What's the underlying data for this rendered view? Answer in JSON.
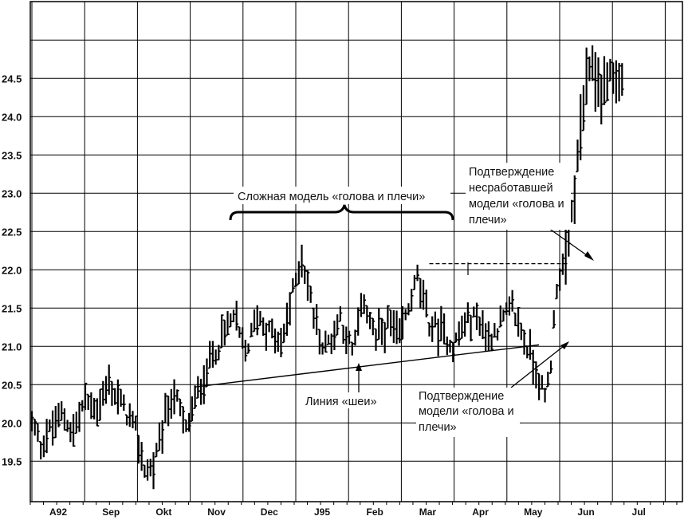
{
  "chart_data": {
    "type": "bar",
    "subtype": "ohlc-price-bars",
    "title": "",
    "xlabel": "",
    "ylabel": "",
    "ylim": [
      19.05,
      25.5
    ],
    "yticks": [
      "19.5",
      "20.0",
      "20.5",
      "21.0",
      "21.5",
      "22.0",
      "22.5",
      "23.0",
      "23.5",
      "24.0",
      "24.5"
    ],
    "ytick_values": [
      19.5,
      20.0,
      20.5,
      21.0,
      21.5,
      22.0,
      22.5,
      23.0,
      23.5,
      24.0,
      24.5
    ],
    "months": [
      "A92",
      "Sep",
      "Okt",
      "Nov",
      "Dec",
      "J95",
      "Feb",
      "Mar",
      "Apr",
      "May",
      "Jun",
      "Jul"
    ],
    "grid": true,
    "anchors": [
      {
        "t": 0,
        "v": 20.0
      },
      {
        "t": 3,
        "v": 19.7
      },
      {
        "t": 6,
        "v": 19.9
      },
      {
        "t": 10,
        "v": 20.1
      },
      {
        "t": 14,
        "v": 19.9
      },
      {
        "t": 18,
        "v": 20.3
      },
      {
        "t": 22,
        "v": 20.2
      },
      {
        "t": 26,
        "v": 20.5
      },
      {
        "t": 31,
        "v": 20.2
      },
      {
        "t": 35,
        "v": 19.9
      },
      {
        "t": 38,
        "v": 19.4
      },
      {
        "t": 41,
        "v": 19.4
      },
      {
        "t": 45,
        "v": 20.1
      },
      {
        "t": 48,
        "v": 20.4
      },
      {
        "t": 52,
        "v": 19.9
      },
      {
        "t": 56,
        "v": 20.4
      },
      {
        "t": 60,
        "v": 20.8
      },
      {
        "t": 64,
        "v": 21.1
      },
      {
        "t": 68,
        "v": 21.4
      },
      {
        "t": 72,
        "v": 20.9
      },
      {
        "t": 76,
        "v": 21.4
      },
      {
        "t": 80,
        "v": 21.2
      },
      {
        "t": 84,
        "v": 21.0
      },
      {
        "t": 88,
        "v": 21.7
      },
      {
        "t": 91,
        "v": 22.2
      },
      {
        "t": 94,
        "v": 21.6
      },
      {
        "t": 98,
        "v": 21.0
      },
      {
        "t": 101,
        "v": 21.1
      },
      {
        "t": 104,
        "v": 21.4
      },
      {
        "t": 108,
        "v": 20.9
      },
      {
        "t": 112,
        "v": 21.6
      },
      {
        "t": 116,
        "v": 21.1
      },
      {
        "t": 120,
        "v": 21.3
      },
      {
        "t": 124,
        "v": 21.1
      },
      {
        "t": 127,
        "v": 21.5
      },
      {
        "t": 130,
        "v": 21.9
      },
      {
        "t": 134,
        "v": 21.3
      },
      {
        "t": 138,
        "v": 21.2
      },
      {
        "t": 142,
        "v": 21.0
      },
      {
        "t": 146,
        "v": 21.3
      },
      {
        "t": 150,
        "v": 21.4
      },
      {
        "t": 154,
        "v": 21.1
      },
      {
        "t": 158,
        "v": 21.3
      },
      {
        "t": 162,
        "v": 21.5
      },
      {
        "t": 166,
        "v": 21.1
      },
      {
        "t": 170,
        "v": 20.7
      },
      {
        "t": 173,
        "v": 20.3
      },
      {
        "t": 175,
        "v": 20.8
      },
      {
        "t": 177,
        "v": 21.8
      },
      {
        "t": 180,
        "v": 22.2
      },
      {
        "t": 183,
        "v": 23.0
      },
      {
        "t": 186,
        "v": 24.2
      },
      {
        "t": 189,
        "v": 24.7
      },
      {
        "t": 192,
        "v": 24.3
      },
      {
        "t": 195,
        "v": 24.6
      },
      {
        "t": 198,
        "v": 24.4
      },
      {
        "t": 199,
        "v": 24.5
      }
    ],
    "neckline": [
      {
        "t": 55,
        "v": 20.47
      },
      {
        "t": 171,
        "v": 21.02
      }
    ],
    "breakout_level": {
      "v": 22.08,
      "from_t": 134,
      "to_t": 181
    }
  },
  "annotations": {
    "complex_hs": "Сложная модель «голова и плечи»",
    "neckline_label": "Линия «шеи»",
    "confirm_lines": [
      "Подтверждение",
      "модели «голова и",
      "плечи»"
    ],
    "failed_confirm_lines": [
      "Подтверждение",
      "несработавшей",
      "модели «голова и",
      "плечи»"
    ]
  }
}
